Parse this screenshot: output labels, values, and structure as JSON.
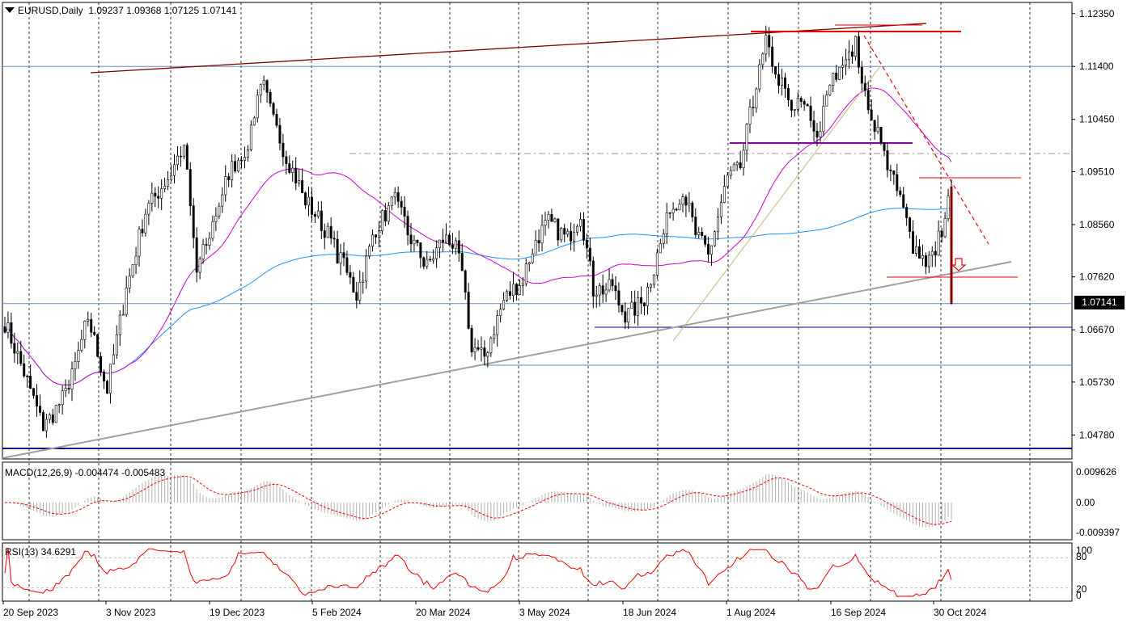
{
  "header": {
    "symbol": "EURUSD,Daily",
    "ohlc": "1.09237 1.09368 1.07125 1.07141"
  },
  "current_price": "1.07141",
  "macd": {
    "label": "MACD(12,26,9) -0.004474 -0.005483",
    "ticks": [
      "0.009626",
      "0.00",
      "-0.009397"
    ]
  },
  "rsi": {
    "label": "RSI(13) 34.6291",
    "ticks": [
      "100",
      "80",
      "20",
      "0"
    ]
  },
  "colors": {
    "bull_candle": "#000000",
    "bear_candle": "#000000",
    "ma_fast": "#cc00cc",
    "ma_slow": "#1e90ff",
    "trend_main": "#a0a0a0",
    "resistance": "#800000",
    "support_line": "#000080",
    "signal_line": "#ee0000",
    "macd_hist": "#b0b0b0"
  },
  "chart_data": {
    "type": "candlestick",
    "instrument": "EURUSD",
    "timeframe": "Daily",
    "xaxis_labels": [
      "20 Sep 2023",
      "3 Nov 2023",
      "19 Dec 2023",
      "5 Feb 2024",
      "20 Mar 2024",
      "3 May 2024",
      "18 Jun 2024",
      "1 Aug 2024",
      "16 Sep 2024",
      "30 Oct 2024"
    ],
    "yaxis_labels": [
      "1.12350",
      "1.11400",
      "1.10450",
      "1.09510",
      "1.08560",
      "1.07620",
      "1.06670",
      "1.05730",
      "1.04780"
    ],
    "ylim": [
      1.0435,
      1.1255
    ],
    "anchors": [
      {
        "i": 0,
        "p": 1.068
      },
      {
        "i": 8,
        "p": 1.056
      },
      {
        "i": 12,
        "p": 1.049
      },
      {
        "i": 20,
        "p": 1.056
      },
      {
        "i": 26,
        "p": 1.069
      },
      {
        "i": 32,
        "p": 1.056
      },
      {
        "i": 38,
        "p": 1.074
      },
      {
        "i": 44,
        "p": 1.088
      },
      {
        "i": 52,
        "p": 1.095
      },
      {
        "i": 56,
        "p": 1.1
      },
      {
        "i": 60,
        "p": 1.077
      },
      {
        "i": 64,
        "p": 1.084
      },
      {
        "i": 70,
        "p": 1.095
      },
      {
        "i": 76,
        "p": 1.1
      },
      {
        "i": 80,
        "p": 1.112
      },
      {
        "i": 84,
        "p": 1.104
      },
      {
        "i": 88,
        "p": 1.098
      },
      {
        "i": 94,
        "p": 1.09
      },
      {
        "i": 100,
        "p": 1.085
      },
      {
        "i": 106,
        "p": 1.078
      },
      {
        "i": 110,
        "p": 1.073
      },
      {
        "i": 116,
        "p": 1.085
      },
      {
        "i": 122,
        "p": 1.09
      },
      {
        "i": 126,
        "p": 1.084
      },
      {
        "i": 132,
        "p": 1.078
      },
      {
        "i": 138,
        "p": 1.084
      },
      {
        "i": 142,
        "p": 1.08
      },
      {
        "i": 146,
        "p": 1.064
      },
      {
        "i": 150,
        "p": 1.062
      },
      {
        "i": 156,
        "p": 1.072
      },
      {
        "i": 162,
        "p": 1.076
      },
      {
        "i": 166,
        "p": 1.083
      },
      {
        "i": 170,
        "p": 1.086
      },
      {
        "i": 176,
        "p": 1.083
      },
      {
        "i": 180,
        "p": 1.088
      },
      {
        "i": 184,
        "p": 1.074
      },
      {
        "i": 190,
        "p": 1.074
      },
      {
        "i": 194,
        "p": 1.069
      },
      {
        "i": 200,
        "p": 1.072
      },
      {
        "i": 204,
        "p": 1.08
      },
      {
        "i": 208,
        "p": 1.088
      },
      {
        "i": 212,
        "p": 1.092
      },
      {
        "i": 216,
        "p": 1.084
      },
      {
        "i": 220,
        "p": 1.08
      },
      {
        "i": 223,
        "p": 1.087
      },
      {
        "i": 226,
        "p": 1.094
      },
      {
        "i": 230,
        "p": 1.096
      },
      {
        "i": 234,
        "p": 1.108
      },
      {
        "i": 238,
        "p": 1.118
      },
      {
        "i": 242,
        "p": 1.112
      },
      {
        "i": 246,
        "p": 1.106
      },
      {
        "i": 250,
        "p": 1.108
      },
      {
        "i": 254,
        "p": 1.101
      },
      {
        "i": 258,
        "p": 1.11
      },
      {
        "i": 262,
        "p": 1.116
      },
      {
        "i": 266,
        "p": 1.118
      },
      {
        "i": 269,
        "p": 1.109
      },
      {
        "i": 272,
        "p": 1.104
      },
      {
        "i": 276,
        "p": 1.096
      },
      {
        "i": 280,
        "p": 1.09
      },
      {
        "i": 284,
        "p": 1.082
      },
      {
        "i": 288,
        "p": 1.079
      },
      {
        "i": 291,
        "p": 1.081
      },
      {
        "i": 294,
        "p": 1.087
      },
      {
        "i": 296,
        "p": 1.0924
      }
    ],
    "last_candle": {
      "open": 1.09237,
      "high": 1.09368,
      "low": 1.07125,
      "close": 1.07141
    },
    "indicators": [
      "MA fast (magenta)",
      "MA slow (blue)",
      "MACD(12,26,9)",
      "RSI(13)"
    ]
  }
}
